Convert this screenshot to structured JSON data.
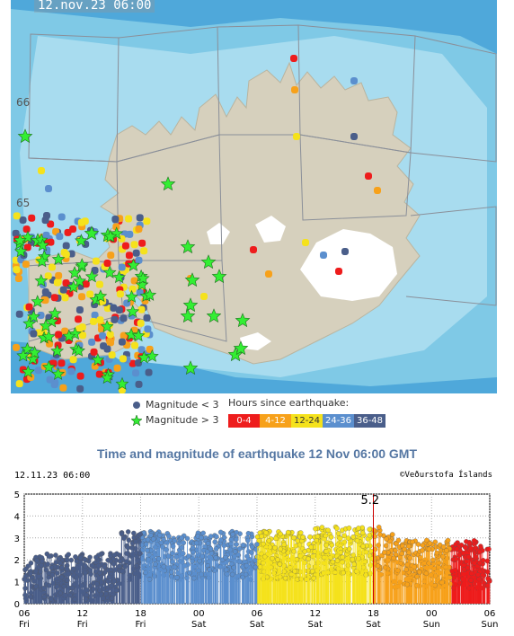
{
  "map": {
    "timestamp": "12.nov.23 06:00",
    "lat_labels": [
      "66",
      "65"
    ]
  },
  "legend": {
    "mag_small": "Magnitude < 3",
    "mag_large": "Magnitude > 3",
    "hours_title": "Hours since earthquake:",
    "hours": [
      {
        "label": "0-4",
        "color": "#ee1c1c"
      },
      {
        "label": "4-12",
        "color": "#f7a11a"
      },
      {
        "label": "12-24",
        "color": "#f5e21c"
      },
      {
        "label": "24-36",
        "color": "#5b8fce"
      },
      {
        "label": "36-48",
        "color": "#4a5e8a"
      }
    ]
  },
  "chart": {
    "title": "Time and magnitude of earthquake   12 Nov 06:00 GMT",
    "date": "12.11.23 06:00",
    "credit": "©Veðurstofa Íslands",
    "annotation": "5.2"
  },
  "chart_data": {
    "type": "scatter",
    "ylim": [
      0,
      5
    ],
    "yticks": [
      "0",
      "1",
      "2",
      "3",
      "4",
      "5"
    ],
    "xticks": [
      {
        "hour": "06",
        "day": "Fri"
      },
      {
        "hour": "12",
        "day": "Fri"
      },
      {
        "hour": "18",
        "day": "Fri"
      },
      {
        "hour": "00",
        "day": "Sat"
      },
      {
        "hour": "06",
        "day": "Sat"
      },
      {
        "hour": "12",
        "day": "Sat"
      },
      {
        "hour": "18",
        "day": "Sat"
      },
      {
        "hour": "00",
        "day": "Sun"
      },
      {
        "hour": "06",
        "day": "Sun"
      }
    ],
    "max_event": {
      "hour": 36,
      "magnitude": 5.2
    },
    "grid": true
  }
}
